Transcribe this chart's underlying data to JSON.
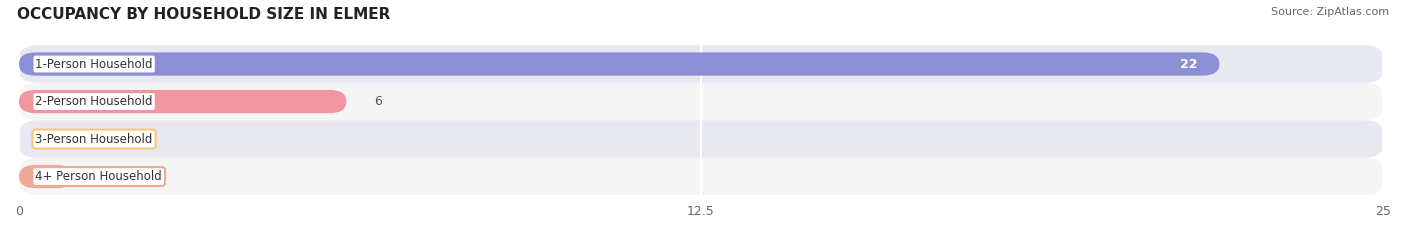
{
  "title": "OCCUPANCY BY HOUSEHOLD SIZE IN ELMER",
  "source": "Source: ZipAtlas.com",
  "categories": [
    "1-Person Household",
    "2-Person Household",
    "3-Person Household",
    "4+ Person Household"
  ],
  "values": [
    22,
    6,
    0,
    1
  ],
  "bar_colors": [
    "#8b8fd4",
    "#f096a0",
    "#f5c97a",
    "#f0a898"
  ],
  "bg_row_colors": [
    "#e8e8f0",
    "#f5f5f5",
    "#e8e8f0",
    "#f5f5f5"
  ],
  "xlim": [
    0,
    25
  ],
  "xticks": [
    0,
    12.5,
    25
  ],
  "title_fontsize": 11,
  "bar_height": 0.62,
  "figsize": [
    14.06,
    2.33
  ],
  "dpi": 100
}
